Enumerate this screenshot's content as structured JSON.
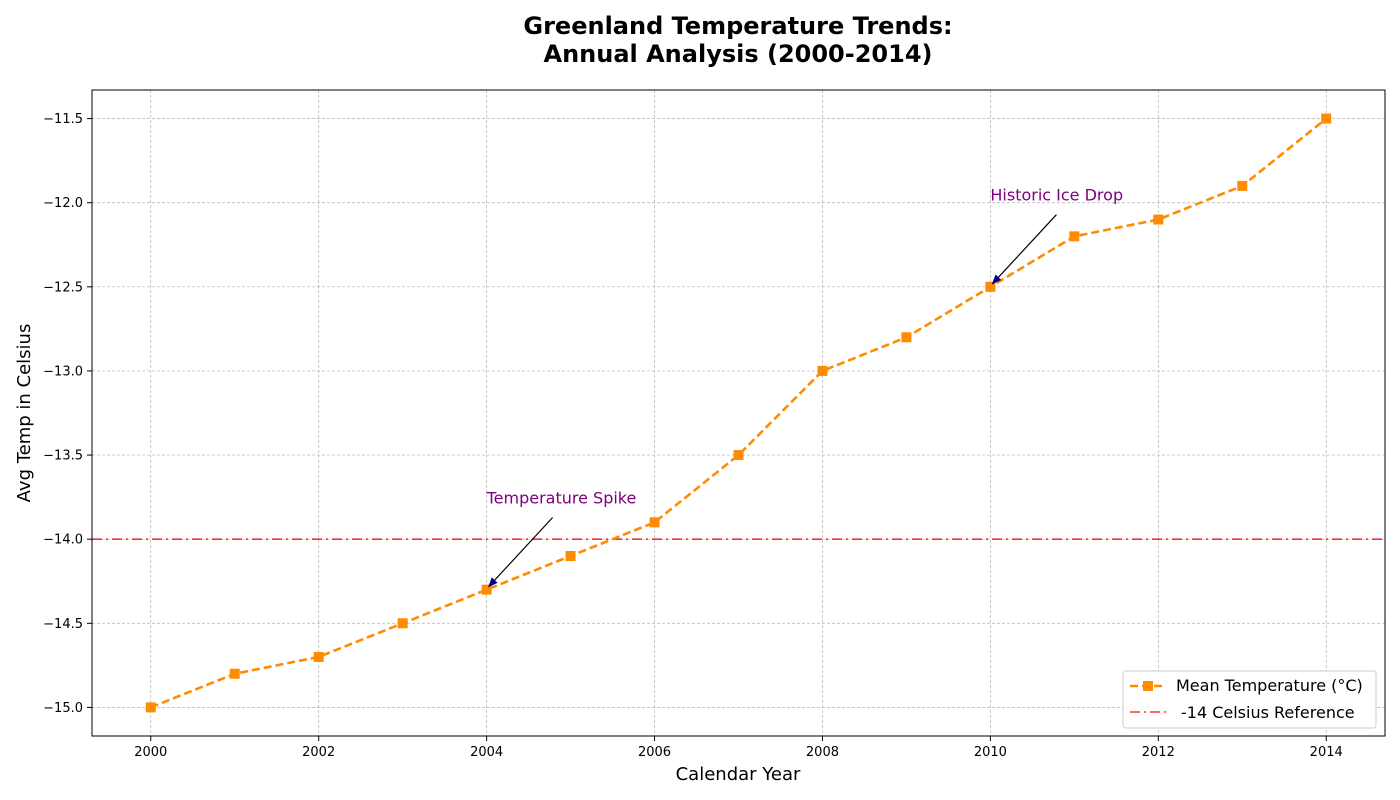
{
  "chart_data": {
    "type": "line",
    "title_line1": "Greenland Temperature Trends:",
    "title_line2": "Annual Analysis (2000-2014)",
    "xlabel": "Calendar Year",
    "ylabel": "Avg Temp in Celsius",
    "xlim": [
      1999.3,
      2014.7
    ],
    "ylim": [
      -15.17,
      -11.33
    ],
    "x_ticks": [
      2000,
      2002,
      2004,
      2006,
      2008,
      2010,
      2012,
      2014
    ],
    "y_ticks": [
      -15.0,
      -14.5,
      -14.0,
      -13.5,
      -13.0,
      -12.5,
      -12.0,
      -11.5
    ],
    "grid": true,
    "legend_position": "bottom-right",
    "series": [
      {
        "name": "Mean Temperature (°C)",
        "color": "#ff8c00",
        "line_style": "dashed",
        "marker": "square",
        "x": [
          2000,
          2001,
          2002,
          2003,
          2004,
          2005,
          2006,
          2007,
          2008,
          2009,
          2010,
          2011,
          2012,
          2013,
          2014
        ],
        "y": [
          -15.0,
          -14.8,
          -14.7,
          -14.5,
          -14.3,
          -14.1,
          -13.9,
          -13.5,
          -13.0,
          -12.8,
          -12.5,
          -12.2,
          -12.1,
          -11.9,
          -11.5
        ]
      }
    ],
    "reference_line": {
      "name": "-14 Celsius Reference",
      "y": -14.0,
      "color": "#ff0000",
      "line_style": "dashdot"
    },
    "annotations": [
      {
        "text": "Temperature Spike",
        "x": 2004,
        "y": -14.3,
        "text_x": 2004,
        "text_y": -13.8,
        "color": "#800080"
      },
      {
        "text": "Historic Ice Drop",
        "x": 2010,
        "y": -12.5,
        "text_x": 2010,
        "text_y": -12.0,
        "color": "#800080"
      }
    ]
  }
}
